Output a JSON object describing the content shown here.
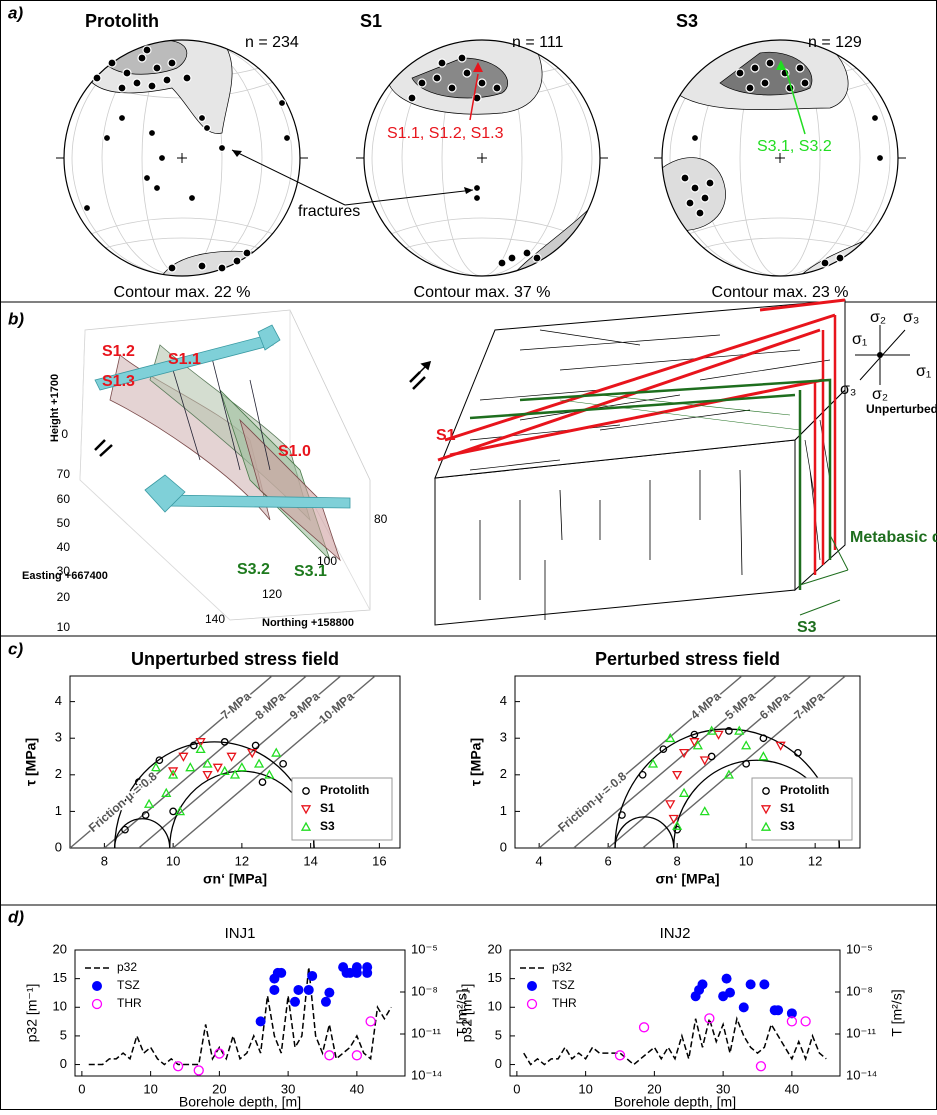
{
  "figure": {
    "panel_a": {
      "label": "a)",
      "nets": [
        {
          "title": "Protolith",
          "n": "n = 234",
          "contour": "Contour max. 22 %"
        },
        {
          "title": "S1",
          "n": "n = 111",
          "contour": "Contour max. 37 %"
        },
        {
          "title": "S3",
          "n": "n = 129",
          "contour": "Contour max. 23 %"
        }
      ],
      "annotations": [
        "fractures",
        "S1.1, S1.2, S1.3",
        "S3.1, S3.2"
      ]
    },
    "panel_b": {
      "label": "b)",
      "axis_labels": {
        "height": "Height +1700",
        "easting": "Easting +667400",
        "northing": "Northing +158800"
      },
      "height_ticks": [
        "0"
      ],
      "easting_ticks": [
        "70",
        "60",
        "50",
        "40",
        "30",
        "20",
        "10"
      ],
      "northing_ticks": [
        "80",
        "100",
        "120",
        "140"
      ],
      "structures": [
        "S1.2",
        "S1.1",
        "S1.3",
        "S1.0",
        "S3.2",
        "S3.1"
      ],
      "block_labels": {
        "s1": "S1",
        "s3": "S3",
        "dyke": "Metabasic dyke",
        "stress": "Unperturbed stress state"
      },
      "sigma": [
        "σ₁",
        "σ₂",
        "σ₃",
        "σ₁",
        "σ₂",
        "σ₃"
      ]
    },
    "panel_c_label": "c)",
    "panel_d_label": "d)"
  },
  "chart_data": [
    {
      "type": "mohr",
      "title": "Unperturbed stress field",
      "x_label": "σn‘ [MPa]",
      "y_label": "τ [MPa]",
      "xlim": [
        7,
        16.6
      ],
      "ylim": [
        0,
        4.7
      ],
      "xticks": [
        8,
        10,
        12,
        14,
        16
      ],
      "yticks": [
        0,
        1,
        2,
        3,
        4
      ],
      "friction": 0.8,
      "friction_label": "Friction μ = 0.8",
      "pressure_lines": [
        {
          "value": 7,
          "label": "7 MPa"
        },
        {
          "value": 8,
          "label": "8 MPa"
        },
        {
          "value": 9,
          "label": "9 MPa"
        },
        {
          "value": 10,
          "label": "10 MPa"
        }
      ],
      "mohr_circles": [
        [
          8.3,
          14.1
        ],
        [
          8.3,
          9.9
        ],
        [
          9.9,
          14.1
        ]
      ],
      "legend": "lower right",
      "series": [
        {
          "name": "Protolith",
          "color": "#000000",
          "marker": "circle",
          "x": [
            8.6,
            9.0,
            9.6,
            10.6,
            11.5,
            12.4,
            13.2,
            13.7,
            14.0,
            9.2,
            10.0,
            12.6
          ],
          "values": [
            0.5,
            1.8,
            2.4,
            2.8,
            2.9,
            2.8,
            2.3,
            1.5,
            0.7,
            0.9,
            1.0,
            1.8
          ]
        },
        {
          "name": "S1",
          "color": "#e8141c",
          "marker": "triangle-down",
          "x": [
            10.3,
            10.8,
            11.3,
            11.7,
            12.3,
            10.0,
            11.0
          ],
          "values": [
            2.5,
            2.9,
            2.2,
            2.5,
            2.6,
            2.1,
            2.0
          ]
        },
        {
          "name": "S3",
          "color": "#22dd22",
          "marker": "triangle-up",
          "x": [
            9.3,
            9.8,
            10.0,
            10.5,
            11.0,
            11.5,
            12.0,
            12.5,
            13.0,
            10.8,
            11.8,
            12.8,
            9.5,
            10.2
          ],
          "values": [
            1.2,
            1.5,
            2.0,
            2.2,
            2.3,
            2.1,
            2.2,
            2.3,
            2.6,
            2.7,
            2.0,
            2.0,
            2.2,
            1.0
          ]
        }
      ]
    },
    {
      "type": "mohr",
      "title": "Perturbed stress field",
      "x_label": "σn‘ [MPa]",
      "y_label": "τ [MPa]",
      "xlim": [
        3.3,
        13.3
      ],
      "ylim": [
        0,
        4.7
      ],
      "xticks": [
        4,
        6,
        8,
        10,
        12
      ],
      "yticks": [
        0,
        1,
        2,
        3,
        4
      ],
      "friction": 0.8,
      "friction_label": "Friction μ = 0.8",
      "pressure_lines": [
        {
          "value": 4,
          "label": "4 MPa"
        },
        {
          "value": 5,
          "label": "5 MPa"
        },
        {
          "value": 6,
          "label": "6 MPa"
        },
        {
          "value": 7,
          "label": "7 MPa"
        }
      ],
      "mohr_circles": [
        [
          6.2,
          12.7
        ],
        [
          6.2,
          7.9
        ],
        [
          7.9,
          12.7
        ]
      ],
      "legend": "lower right",
      "series": [
        {
          "name": "Protolith",
          "color": "#000000",
          "marker": "circle",
          "x": [
            6.4,
            7.0,
            7.6,
            8.5,
            9.5,
            10.5,
            11.5,
            12.3,
            12.6,
            8.0,
            9.0,
            10.0
          ],
          "values": [
            0.9,
            2.0,
            2.7,
            3.1,
            3.2,
            3.0,
            2.6,
            1.6,
            0.9,
            0.5,
            2.5,
            2.3
          ]
        },
        {
          "name": "S1",
          "color": "#e8141c",
          "marker": "triangle-down",
          "x": [
            7.8,
            8.0,
            8.2,
            8.5,
            8.8,
            9.2,
            7.9,
            11.0
          ],
          "values": [
            1.2,
            2.0,
            2.6,
            2.9,
            2.4,
            3.1,
            0.8,
            2.8
          ]
        },
        {
          "name": "S3",
          "color": "#22dd22",
          "marker": "triangle-up",
          "x": [
            7.3,
            7.8,
            8.2,
            8.6,
            9.0,
            9.5,
            10.0,
            10.5,
            11.0,
            11.5,
            12.5,
            8.0,
            8.8,
            9.8
          ],
          "values": [
            2.3,
            3.0,
            1.5,
            2.8,
            3.2,
            2.0,
            2.8,
            2.5,
            1.6,
            1.4,
            1.5,
            0.6,
            1.0,
            3.2
          ]
        }
      ]
    },
    {
      "type": "borehole",
      "title": "INJ1",
      "x_label": "Borehole depth, [m]",
      "y_label": "p32 [m⁻¹]",
      "y2_label": "T [m²/s]",
      "xlim": [
        -1,
        47
      ],
      "xticks": [
        0,
        10,
        20,
        30,
        40
      ],
      "ylim": [
        -2,
        20
      ],
      "yticks": [
        0,
        5,
        10,
        15,
        20
      ],
      "y2lim": [
        1e-14,
        1e-05
      ],
      "y2_log": true,
      "y2ticks": [
        {
          "value": 1e-14,
          "label": "10⁻¹⁴"
        },
        {
          "value": 1e-11,
          "label": "10⁻¹¹"
        },
        {
          "value": 1e-08,
          "label": "10⁻⁸"
        },
        {
          "value": 1e-05,
          "label": "10⁻⁵"
        }
      ],
      "legend": "upper left",
      "series": [
        {
          "name": "p32",
          "color": "#000000",
          "style": "dashed",
          "x": [
            1,
            2,
            3,
            4,
            5,
            6,
            7,
            8,
            9,
            10,
            11,
            12,
            13,
            14,
            15,
            16,
            17,
            18,
            19,
            20,
            21,
            22,
            23,
            24,
            25,
            26,
            27,
            28,
            29,
            30,
            31,
            32,
            33,
            34,
            35,
            36,
            37,
            38,
            39,
            40,
            41,
            42,
            43,
            44,
            45
          ],
          "values": [
            0,
            0,
            0,
            1,
            1,
            2,
            1,
            5,
            2,
            3,
            1,
            0,
            1,
            0,
            0,
            0,
            0,
            7,
            1,
            3,
            1,
            5,
            1,
            2,
            5,
            2,
            12,
            5,
            2,
            12,
            3,
            5,
            17,
            5,
            2,
            7,
            1,
            2,
            3,
            5,
            2,
            1,
            10,
            8,
            10
          ]
        },
        {
          "name": "TSZ",
          "color": "#0000ff",
          "marker": "filled",
          "axis": "y2",
          "x": [
            26,
            28,
            28,
            28.5,
            29,
            31,
            31.5,
            33,
            33.5,
            35.5,
            36,
            38,
            38.5,
            39,
            40,
            40,
            41.5,
            41.5
          ],
          "values": [
            8e-11,
            1.4e-08,
            9e-08,
            2.3e-07,
            2.3e-07,
            2e-09,
            1.4e-08,
            1.4e-08,
            1.4e-07,
            2e-09,
            9e-09,
            6e-07,
            2.3e-07,
            2.3e-07,
            2.3e-07,
            6e-07,
            2.3e-07,
            6e-07
          ]
        },
        {
          "name": "THR",
          "color": "#ff00ff",
          "marker": "hollow",
          "axis": "y2",
          "x": [
            14,
            17,
            20,
            36,
            40,
            42
          ],
          "values": [
            5e-14,
            2.5e-14,
            4e-13,
            3e-13,
            3e-13,
            8e-11
          ]
        }
      ]
    },
    {
      "type": "borehole",
      "title": "INJ2",
      "x_label": "Borehole depth, [m]",
      "y_label": "p32 [m⁻¹]",
      "y2_label": "T [m²/s]",
      "xlim": [
        -1,
        47
      ],
      "xticks": [
        0,
        10,
        20,
        30,
        40
      ],
      "ylim": [
        -2,
        20
      ],
      "yticks": [
        0,
        5,
        10,
        15,
        20
      ],
      "y2lim": [
        1e-14,
        1e-05
      ],
      "y2_log": true,
      "y2ticks": [
        {
          "value": 1e-14,
          "label": "10⁻¹⁴"
        },
        {
          "value": 1e-11,
          "label": "10⁻¹¹"
        },
        {
          "value": 1e-08,
          "label": "10⁻⁸"
        },
        {
          "value": 1e-05,
          "label": "10⁻⁵"
        }
      ],
      "legend": "upper left",
      "series": [
        {
          "name": "p32",
          "color": "#000000",
          "style": "dashed",
          "x": [
            1,
            2,
            3,
            4,
            5,
            6,
            7,
            8,
            9,
            10,
            11,
            12,
            13,
            14,
            15,
            16,
            17,
            18,
            19,
            20,
            21,
            22,
            23,
            24,
            25,
            26,
            27,
            28,
            29,
            30,
            31,
            32,
            33,
            34,
            35,
            36,
            37,
            38,
            39,
            40,
            41,
            42,
            43,
            44,
            45
          ],
          "values": [
            2,
            0,
            1,
            0,
            1,
            1,
            3,
            1,
            2,
            1,
            3,
            2,
            2,
            2,
            2,
            1,
            0,
            1,
            2,
            3,
            1,
            3,
            1,
            5,
            1,
            8,
            3,
            8,
            4,
            7,
            2,
            8,
            5,
            3,
            2,
            3,
            7,
            5,
            3,
            1,
            4,
            1,
            5,
            2,
            1
          ]
        },
        {
          "name": "TSZ",
          "color": "#0000ff",
          "marker": "filled",
          "axis": "y2",
          "x": [
            26,
            26.5,
            27,
            30,
            30.5,
            31,
            33,
            34,
            36,
            37.5,
            38,
            40
          ],
          "values": [
            5e-09,
            1.4e-08,
            3.5e-08,
            5e-09,
            9e-08,
            9e-09,
            8e-10,
            3.5e-08,
            3.5e-08,
            5e-10,
            5e-10,
            3e-10
          ]
        },
        {
          "name": "THR",
          "color": "#ff00ff",
          "marker": "hollow",
          "axis": "y2",
          "x": [
            15,
            18.5,
            28,
            35.5,
            40,
            42
          ],
          "values": [
            3e-13,
            3e-11,
            1.3e-10,
            5e-14,
            8e-11,
            8e-11
          ]
        }
      ]
    }
  ]
}
